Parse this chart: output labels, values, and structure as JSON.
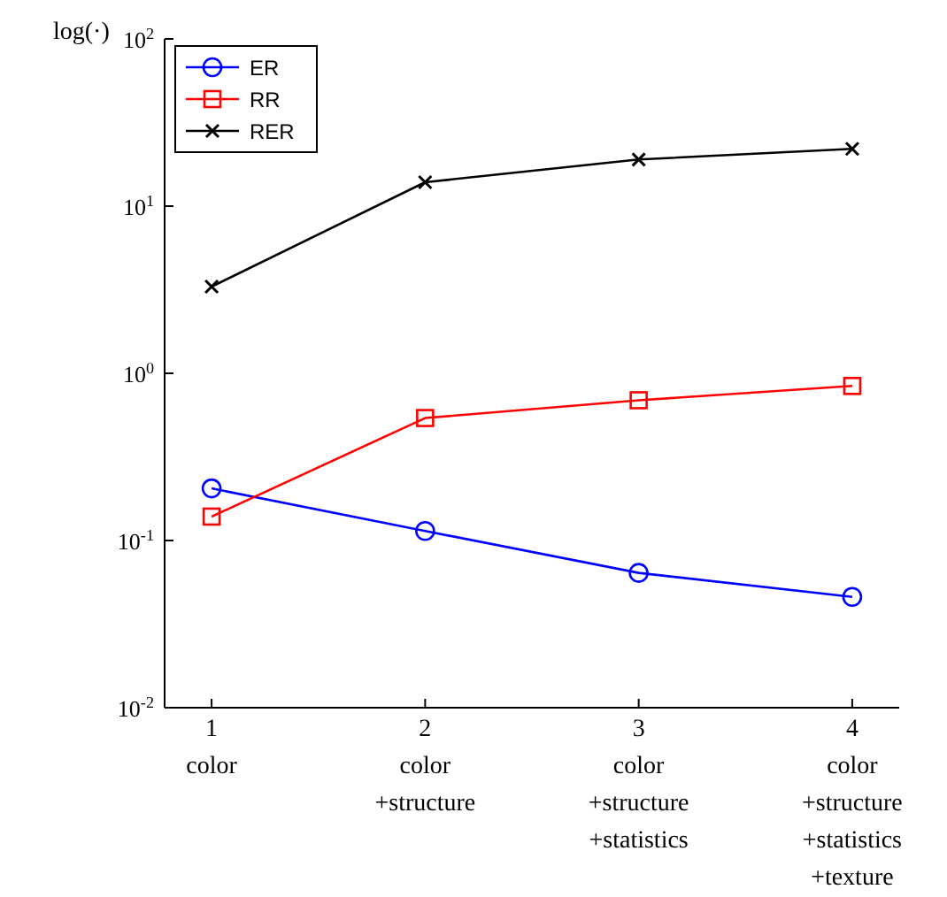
{
  "chart_data": {
    "type": "line",
    "ylabel": "log(·)",
    "log": "y",
    "ylim": [
      0.01,
      100
    ],
    "yticks": [
      {
        "value": 0.01,
        "label": "10$^{-2}$"
      },
      {
        "value": 0.1,
        "label": "10$^{-1}$"
      },
      {
        "value": 1,
        "label": "10$^{0}$"
      },
      {
        "value": 10,
        "label": "10$^{1}$"
      },
      {
        "value": 100,
        "label": "10$^{2}$"
      }
    ],
    "categories": [
      "1\ncolor",
      "2\ncolor\n+structure",
      "3\ncolor\n+structure\n+statistics",
      "4\ncolor\n+structure\n+statistics\n+texture"
    ],
    "series": [
      {
        "name": "ER",
        "color": "#0000ff",
        "marker": "circle",
        "values": [
          0.205,
          0.114,
          0.064,
          0.046
        ]
      },
      {
        "name": "RR",
        "color": "#ff0000",
        "marker": "square",
        "values": [
          0.139,
          0.54,
          0.69,
          0.84
        ]
      },
      {
        "name": "RER",
        "color": "#000000",
        "marker": "cross",
        "values": [
          3.3,
          13.9,
          19,
          22
        ]
      }
    ],
    "legend": "top left",
    "grid": false,
    "line_style": "solid"
  }
}
